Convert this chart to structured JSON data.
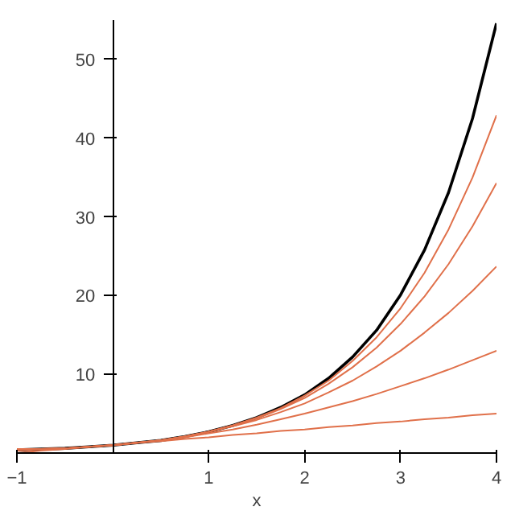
{
  "chart_data": {
    "type": "line",
    "xlabel": "x",
    "xlim": [
      -1,
      4
    ],
    "ylim": [
      0,
      55
    ],
    "xticks": [
      -1,
      1,
      2,
      3,
      4
    ],
    "yticks": [
      10,
      20,
      30,
      40,
      50
    ],
    "grid": false,
    "marker": "none",
    "line_style": "solid",
    "x": [
      -1,
      -0.75,
      -0.5,
      -0.25,
      0,
      0.25,
      0.5,
      0.75,
      1,
      1.25,
      1.5,
      1.75,
      2,
      2.25,
      2.5,
      2.75,
      3,
      3.25,
      3.5,
      3.75,
      4
    ],
    "series": [
      {
        "color": "#000000",
        "values": [
          0.4,
          0.5,
          0.6,
          0.8,
          1,
          1.3,
          1.6,
          2.1,
          2.7,
          3.5,
          4.5,
          5.8,
          7.4,
          9.5,
          12.2,
          15.6,
          20.1,
          25.8,
          33.1,
          42.5,
          54.6
        ]
      },
      {
        "color": "#e0704a",
        "values": [
          0,
          0.3,
          0.5,
          0.8,
          1,
          1.3,
          1.5,
          1.8,
          2,
          2.3,
          2.5,
          2.8,
          3,
          3.3,
          3.5,
          3.8,
          4,
          4.3,
          4.5,
          4.8,
          5
        ]
      },
      {
        "color": "#e0704a",
        "values": [
          0.5,
          0.5,
          0.6,
          0.8,
          1,
          1.3,
          1.6,
          2,
          2.5,
          3,
          3.6,
          4.3,
          5,
          5.8,
          6.6,
          7.5,
          8.5,
          9.5,
          10.6,
          11.8,
          13
        ]
      },
      {
        "color": "#e0704a",
        "values": [
          0.3,
          0.5,
          0.6,
          0.8,
          1,
          1.3,
          1.6,
          2.1,
          2.7,
          3.4,
          4.2,
          5.2,
          6.3,
          7.7,
          9.2,
          11,
          13,
          15.3,
          17.8,
          20.6,
          23.7
        ]
      },
      {
        "color": "#e0704a",
        "values": [
          0.4,
          0.5,
          0.6,
          0.8,
          1,
          1.3,
          1.6,
          2.1,
          2.7,
          3.5,
          4.4,
          5.6,
          7,
          8.8,
          10.9,
          13.4,
          16.4,
          19.9,
          24,
          28.8,
          34.3
        ]
      },
      {
        "color": "#e0704a",
        "values": [
          0.4,
          0.5,
          0.6,
          0.8,
          1,
          1.3,
          1.6,
          2.1,
          2.7,
          3.5,
          4.5,
          5.7,
          7.3,
          9.2,
          11.7,
          14.7,
          18.4,
          22.9,
          28.4,
          35,
          42.9
        ]
      }
    ]
  }
}
